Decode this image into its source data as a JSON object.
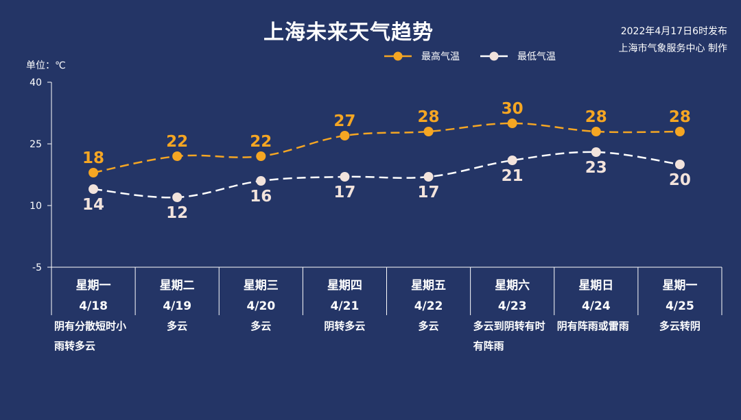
{
  "header": {
    "title": "上海未来天气趋势",
    "publish_time": "2022年4月17日6时发布",
    "publisher": "上海市气象服务中心 制作",
    "unit": "单位：℃"
  },
  "colors": {
    "background": "#243566",
    "high": "#f5a623",
    "low": "#ffffff",
    "low_marker": "#f2e3dc"
  },
  "chart_data": {
    "type": "line",
    "title": "上海未来天气趋势",
    "ylabel": "单位：℃",
    "ylim": [
      -5,
      40
    ],
    "yticks": [
      -5,
      10,
      25,
      40
    ],
    "grid": false,
    "legend_position": "top-right",
    "categories": [
      {
        "weekday": "星期一",
        "date": "4/18"
      },
      {
        "weekday": "星期二",
        "date": "4/19"
      },
      {
        "weekday": "星期三",
        "date": "4/20"
      },
      {
        "weekday": "星期四",
        "date": "4/21"
      },
      {
        "weekday": "星期五",
        "date": "4/22"
      },
      {
        "weekday": "星期六",
        "date": "4/23"
      },
      {
        "weekday": "星期日",
        "date": "4/24"
      },
      {
        "weekday": "星期一",
        "date": "4/25"
      }
    ],
    "series": [
      {
        "name": "最高气温",
        "values": [
          18,
          22,
          22,
          27,
          28,
          30,
          28,
          28
        ]
      },
      {
        "name": "最低气温",
        "values": [
          14,
          12,
          16,
          17,
          17,
          21,
          23,
          20
        ]
      }
    ]
  },
  "weather": [
    "阴有分散短时小雨转多云",
    "多云",
    "多云",
    "阴转多云",
    "多云",
    "多云到阴转有时有阵雨",
    "阴有阵雨或雷雨",
    "多云转阴"
  ]
}
